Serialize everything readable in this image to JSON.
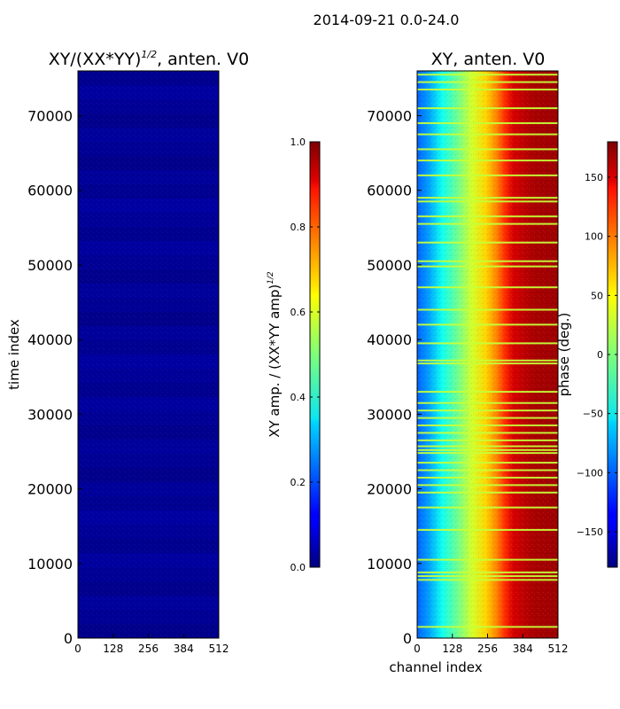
{
  "figure": {
    "suptitle": "2014-09-21 0.0-24.0"
  },
  "chart_data": [
    {
      "type": "heatmap",
      "title": "XY/(XX*YY)",
      "title_superscript": "1/2",
      "title_suffix": ", anten. V0",
      "xlabel": "",
      "ylabel": "time index",
      "xlim": [
        0,
        512
      ],
      "ylim": [
        0,
        76000
      ],
      "xticks": [
        "0",
        "128",
        "256",
        "384",
        "512"
      ],
      "xtick_values": [
        0,
        128,
        256,
        384,
        512
      ],
      "yticks": [
        "0",
        "10000",
        "20000",
        "30000",
        "40000",
        "50000",
        "60000",
        "70000"
      ],
      "ytick_values": [
        0,
        10000,
        20000,
        30000,
        40000,
        50000,
        60000,
        70000
      ],
      "value_range": [
        0.0,
        1.0
      ],
      "typical_value": 0.03,
      "colormap": "jet",
      "colorbar": {
        "label": "XY amp. / (XX*YY amp)",
        "label_superscript": "1/2",
        "ticks": [
          "0.0",
          "0.2",
          "0.4",
          "0.6",
          "0.8",
          "1.0"
        ],
        "tick_values": [
          0.0,
          0.2,
          0.4,
          0.6,
          0.8,
          1.0
        ],
        "range": [
          0.0,
          1.0
        ]
      }
    },
    {
      "type": "heatmap",
      "title": "XY, anten. V0",
      "xlabel": "channel index",
      "ylabel": "",
      "xlim": [
        0,
        512
      ],
      "ylim": [
        0,
        76000
      ],
      "xticks": [
        "0",
        "128",
        "256",
        "384",
        "512"
      ],
      "xtick_values": [
        0,
        128,
        256,
        384,
        512
      ],
      "yticks": [
        "0",
        "10000",
        "20000",
        "30000",
        "40000",
        "50000",
        "60000",
        "70000"
      ],
      "ytick_values": [
        0,
        10000,
        20000,
        30000,
        40000,
        50000,
        60000,
        70000
      ],
      "value_range": [
        -180,
        180
      ],
      "colormap": "jet",
      "phase_gradient": {
        "channels": [
          0,
          40,
          90,
          140,
          200,
          250,
          290,
          320,
          350,
          420,
          512
        ],
        "phase_deg": [
          -100,
          -80,
          -40,
          -10,
          30,
          60,
          90,
          120,
          150,
          165,
          170
        ]
      },
      "flat_lines_time_index": [
        1500,
        7800,
        8300,
        8800,
        10500,
        14500,
        17500,
        19500,
        20500,
        21500,
        22500,
        23500,
        24800,
        25200,
        25700,
        26500,
        27500,
        28500,
        29500,
        30500,
        31500,
        33000,
        36800,
        37200,
        39500,
        42000,
        44000,
        47000,
        49800,
        50500,
        53000,
        55500,
        56500,
        58500,
        59000,
        62000,
        64000,
        65500,
        67500,
        69000,
        71000,
        73500,
        74500,
        75500
      ],
      "flat_line_phase_deg": 25,
      "colorbar": {
        "label": "phase (deg.)",
        "ticks": [
          "−150",
          "−100",
          "−50",
          "0",
          "50",
          "100",
          "150"
        ],
        "tick_values": [
          -150,
          -100,
          -50,
          0,
          50,
          100,
          150
        ],
        "range": [
          -180,
          180
        ]
      }
    }
  ]
}
